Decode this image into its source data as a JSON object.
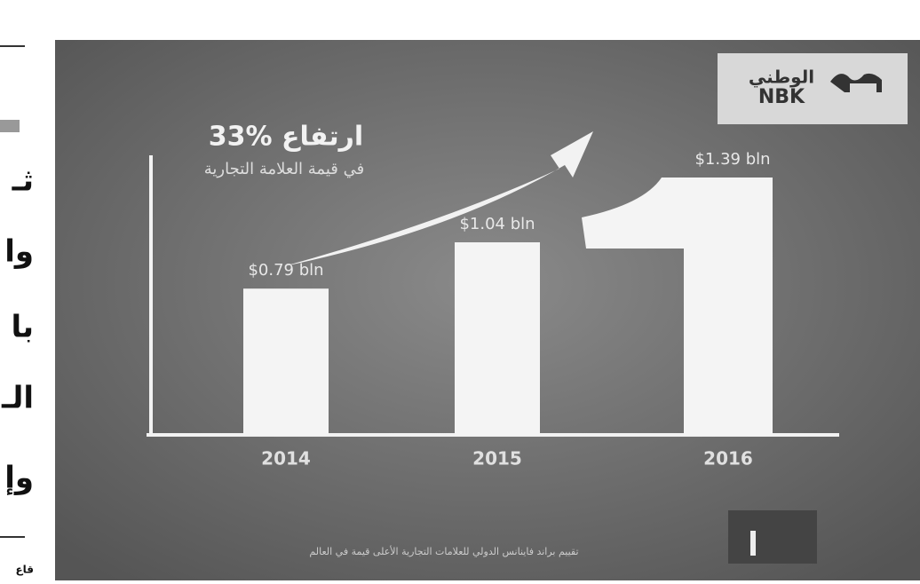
{
  "chart_data": {
    "type": "bar",
    "title": "33% ارتفاع",
    "subtitle": "في قيمة العلامة التجارية",
    "logo": {
      "arabic": "الوطني",
      "latin": "NBK"
    },
    "footer": "تقييم براند فاينانس الدولي للعلامات التجارية الأعلى قيمة في العالم",
    "categories": [
      "2014",
      "2015",
      "2016"
    ],
    "values": [
      0.79,
      1.04,
      1.39
    ],
    "value_labels": [
      "$0.79 bln",
      "$1.04 bln",
      "$1.39 bln"
    ],
    "color": "#f4f4f4"
  },
  "side_column": {
    "fragments": [
      "ثـ",
      "وا",
      "با",
      "الـ",
      "وإ",
      "قاع"
    ]
  }
}
